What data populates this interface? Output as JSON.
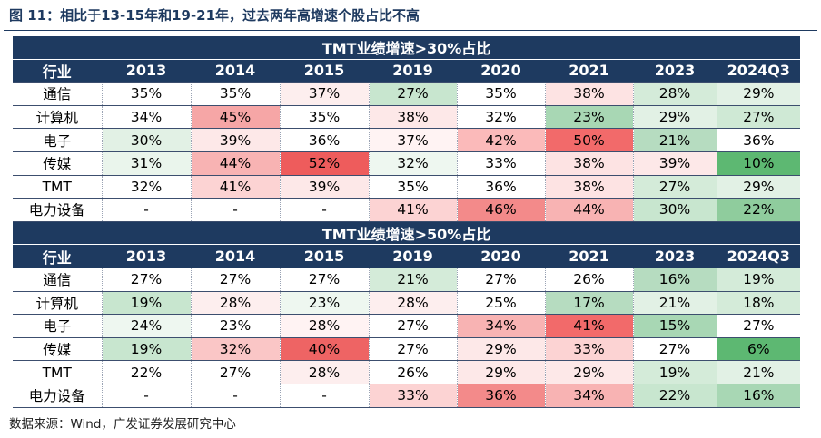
{
  "figure": {
    "title": "图 11：相比于13-15年和19-21年，过去两年高增速个股占比不高",
    "source": "数据来源：Wind，广发证券发展研究中心"
  },
  "chart_data": {
    "type": "table",
    "columns": [
      "行业",
      "2013",
      "2014",
      "2015",
      "2019",
      "2020",
      "2021",
      "2023",
      "2024Q3"
    ],
    "sections": [
      {
        "title": "TMT业绩增速>30%占比",
        "rows": [
          {
            "label": "通信",
            "cells": [
              "35%",
              "35%",
              "37%",
              "27%",
              "35%",
              "38%",
              "28%",
              "29%"
            ]
          },
          {
            "label": "计算机",
            "cells": [
              "34%",
              "45%",
              "35%",
              "38%",
              "32%",
              "23%",
              "29%",
              "27%"
            ]
          },
          {
            "label": "电子",
            "cells": [
              "30%",
              "39%",
              "36%",
              "37%",
              "42%",
              "50%",
              "21%",
              "36%"
            ]
          },
          {
            "label": "传媒",
            "cells": [
              "31%",
              "44%",
              "52%",
              "32%",
              "33%",
              "38%",
              "39%",
              "10%"
            ]
          },
          {
            "label": "TMT",
            "cells": [
              "32%",
              "41%",
              "39%",
              "35%",
              "36%",
              "38%",
              "27%",
              "29%"
            ]
          },
          {
            "label": "电力设备",
            "cells": [
              "-",
              "-",
              "-",
              "41%",
              "46%",
              "44%",
              "30%",
              "22%"
            ]
          }
        ],
        "colors": [
          [
            "#ffffff",
            "#ffffff",
            "#fdeeee",
            "#c8e6cf",
            "#ffffff",
            "#fde3e3",
            "#d4ebd9",
            "#e2f1e5"
          ],
          [
            "#ffffff",
            "#f6a6a6",
            "#ffffff",
            "#fde8e8",
            "#ffffff",
            "#a8d7b4",
            "#e2f1e5",
            "#cfe9d5"
          ],
          [
            "#e2f1e5",
            "#fde8e8",
            "#ffffff",
            "#fff3f3",
            "#fbbaba",
            "#f26a6a",
            "#b6dcc0",
            "#ffffff"
          ],
          [
            "#eaf5ec",
            "#f8b3b3",
            "#ee5c5c",
            "#eef7f0",
            "#ffffff",
            "#fde3e3",
            "#fde8e8",
            "#5db872"
          ],
          [
            "#ffffff",
            "#fcd3d3",
            "#fde8e8",
            "#ffffff",
            "#ffffff",
            "#fde3e3",
            "#d4ebd9",
            "#e2f1e5"
          ],
          [
            "#ffffff",
            "#ffffff",
            "#ffffff",
            "#fcd3d3",
            "#f38a8a",
            "#f8b3b3",
            "#c8e6cf",
            "#8fcc9d"
          ]
        ]
      },
      {
        "title": "TMT业绩增速>50%占比",
        "rows": [
          {
            "label": "通信",
            "cells": [
              "27%",
              "27%",
              "27%",
              "21%",
              "27%",
              "26%",
              "16%",
              "19%"
            ]
          },
          {
            "label": "计算机",
            "cells": [
              "19%",
              "28%",
              "23%",
              "28%",
              "25%",
              "17%",
              "21%",
              "18%"
            ]
          },
          {
            "label": "电子",
            "cells": [
              "24%",
              "23%",
              "28%",
              "27%",
              "34%",
              "41%",
              "15%",
              "27%"
            ]
          },
          {
            "label": "传媒",
            "cells": [
              "19%",
              "32%",
              "40%",
              "27%",
              "29%",
              "33%",
              "27%",
              "6%"
            ]
          },
          {
            "label": "TMT",
            "cells": [
              "22%",
              "27%",
              "28%",
              "26%",
              "29%",
              "29%",
              "19%",
              "21%"
            ]
          },
          {
            "label": "电力设备",
            "cells": [
              "-",
              "-",
              "-",
              "33%",
              "36%",
              "34%",
              "22%",
              "16%"
            ]
          }
        ],
        "colors": [
          [
            "#ffffff",
            "#ffffff",
            "#ffffff",
            "#d4ebd9",
            "#ffffff",
            "#ffffff",
            "#b6dcc0",
            "#d4ebd9"
          ],
          [
            "#c8e6cf",
            "#fdeeee",
            "#eef7f0",
            "#fdeeee",
            "#ffffff",
            "#b6dcc0",
            "#e2f1e5",
            "#d4ebd9"
          ],
          [
            "#eef7f0",
            "#ffffff",
            "#fff3f3",
            "#ffffff",
            "#f8b3b3",
            "#f26a6a",
            "#a8d7b4",
            "#ffffff"
          ],
          [
            "#c8e6cf",
            "#fac6c6",
            "#ee6464",
            "#ffffff",
            "#fde8e8",
            "#fcd3d3",
            "#ffffff",
            "#5db872"
          ],
          [
            "#ffffff",
            "#ffffff",
            "#fdeeee",
            "#ffffff",
            "#fde8e8",
            "#fde8e8",
            "#d4ebd9",
            "#e2f1e5"
          ],
          [
            "#ffffff",
            "#ffffff",
            "#ffffff",
            "#fcd3d3",
            "#f38a8a",
            "#f8b3b3",
            "#c8e6cf",
            "#a8d7b4"
          ]
        ]
      }
    ]
  }
}
